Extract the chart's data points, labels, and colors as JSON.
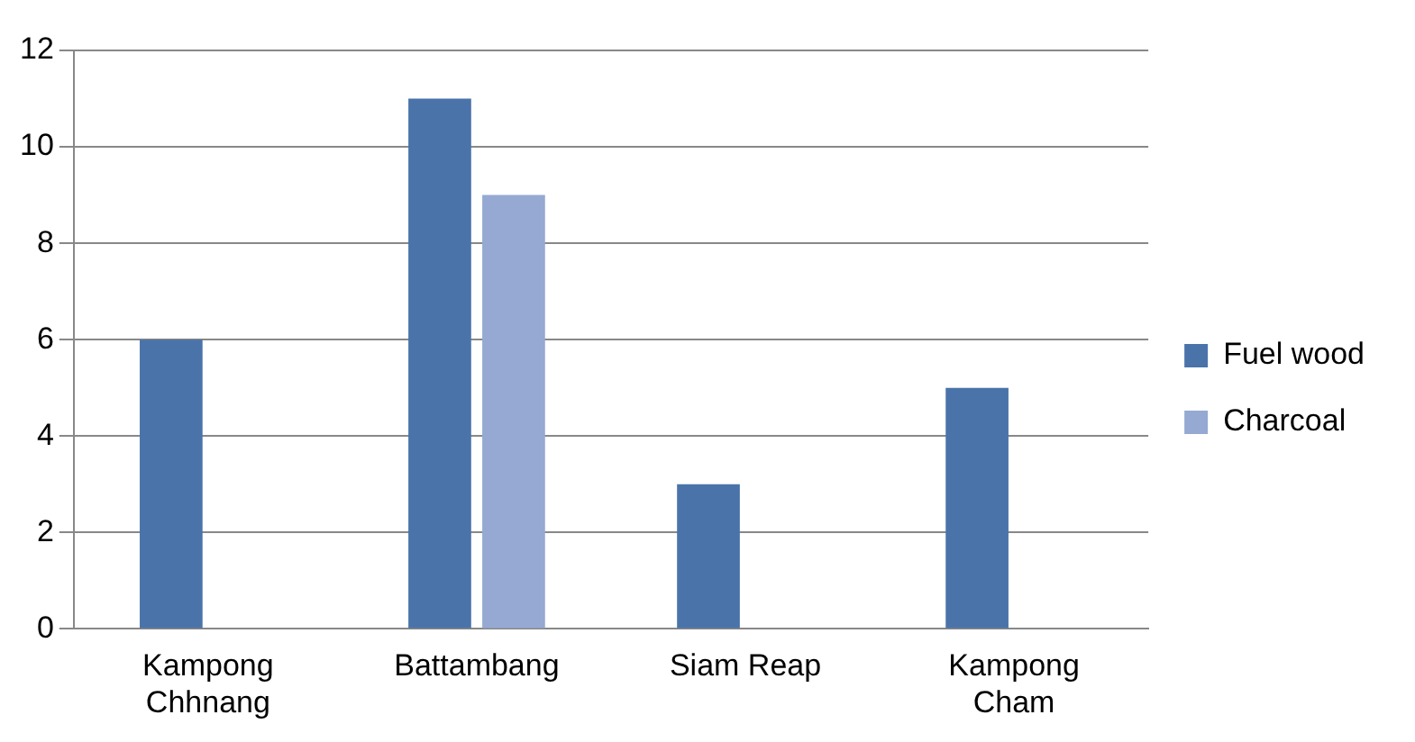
{
  "chart_data": {
    "type": "bar",
    "categories": [
      "Kampong Chhnang",
      "Battambang",
      "Siam Reap",
      "Kampong Cham"
    ],
    "series": [
      {
        "name": "Fuel wood",
        "color": "#4a73aa",
        "values": [
          6,
          11,
          3,
          5
        ]
      },
      {
        "name": "Charcoal",
        "color": "#95a9d2",
        "values": [
          null,
          9,
          null,
          null
        ]
      }
    ],
    "ylim": [
      0,
      12
    ],
    "yticks": [
      0,
      2,
      4,
      6,
      8,
      10,
      12
    ],
    "grid": "y",
    "legend": "right"
  }
}
